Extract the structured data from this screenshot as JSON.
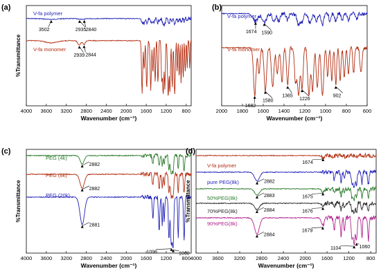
{
  "chart_data": [
    {
      "panel": "(a)",
      "type": "line",
      "xlabel": "Wavenumber (cm⁻¹)",
      "ylabel": "%Transmittance",
      "x_reversed": true,
      "xlim": [
        4000,
        700
      ],
      "xticks": [
        4000,
        3600,
        3200,
        2800,
        2400,
        2000,
        1600,
        1200,
        800
      ],
      "series": [
        {
          "name": "V-fa polymer",
          "color": "#1f1fb4",
          "base": 0.13,
          "depth": 0.16,
          "bands": [
            [
              3502,
              0.05,
              120
            ],
            [
              2935,
              0.05,
              40
            ],
            [
              2840,
              0.04,
              30
            ],
            [
              1650,
              0.3,
              30
            ],
            [
              1580,
              0.2,
              20
            ],
            [
              1500,
              0.25,
              18
            ],
            [
              1450,
              0.3,
              20
            ],
            [
              1365,
              0.25,
              15
            ],
            [
              1260,
              0.35,
              20
            ],
            [
              1226,
              0.25,
              15
            ],
            [
              1150,
              0.3,
              18
            ],
            [
              1090,
              0.25,
              15
            ],
            [
              1030,
              0.35,
              15
            ],
            [
              960,
              0.2,
              12
            ],
            [
              902,
              0.25,
              12
            ],
            [
              840,
              0.2,
              12
            ],
            [
              780,
              0.2,
              10
            ]
          ]
        },
        {
          "name": "V-fa monomer",
          "color": "#b22c10",
          "base": 0.35,
          "depth": 0.55,
          "bands": [
            [
              3500,
              0.04,
              120
            ],
            [
              2939,
              0.08,
              30
            ],
            [
              2844,
              0.07,
              25
            ],
            [
              1682,
              0.95,
              12
            ],
            [
              1640,
              0.5,
              10
            ],
            [
              1590,
              0.85,
              12
            ],
            [
              1510,
              0.9,
              12
            ],
            [
              1465,
              0.6,
              10
            ],
            [
              1420,
              0.75,
              10
            ],
            [
              1365,
              0.8,
              10
            ],
            [
              1290,
              0.7,
              10
            ],
            [
              1260,
              1.0,
              12
            ],
            [
              1226,
              0.85,
              10
            ],
            [
              1160,
              1.0,
              14
            ],
            [
              1125,
              0.9,
              10
            ],
            [
              1080,
              0.85,
              10
            ],
            [
              1030,
              1.0,
              12
            ],
            [
              980,
              0.6,
              8
            ],
            [
              940,
              0.7,
              8
            ],
            [
              902,
              0.8,
              8
            ],
            [
              860,
              0.7,
              8
            ],
            [
              820,
              0.6,
              8
            ],
            [
              780,
              0.5,
              8
            ],
            [
              730,
              0.5,
              8
            ]
          ]
        }
      ],
      "annotations": [
        {
          "text": "3502",
          "x": 3502,
          "series": 0
        },
        {
          "text": "2935",
          "x": 2935,
          "series": 0
        },
        {
          "text": "2840",
          "x": 2840,
          "series": 0
        },
        {
          "text": "2939",
          "x": 2939,
          "series": 1
        },
        {
          "text": "2844",
          "x": 2844,
          "series": 1
        }
      ]
    },
    {
      "panel": "(b)",
      "type": "line",
      "xlabel": "Wavenumber (cm⁻¹)",
      "ylabel": "",
      "x_reversed": true,
      "xlim": [
        2000,
        600
      ],
      "xticks": [
        2000,
        1800,
        1600,
        1400,
        1200,
        1000,
        800,
        600
      ],
      "series": [
        {
          "name": "V-fa polymer",
          "color": "#1f1fb4",
          "base": 0.08,
          "depth": 0.22,
          "bands": [
            [
              1674,
              0.35,
              25
            ],
            [
              1590,
              0.4,
              20
            ],
            [
              1500,
              0.3,
              15
            ],
            [
              1450,
              0.35,
              15
            ],
            [
              1365,
              0.3,
              12
            ],
            [
              1260,
              0.5,
              15
            ],
            [
              1226,
              0.35,
              12
            ],
            [
              1150,
              0.45,
              15
            ],
            [
              1090,
              0.35,
              12
            ],
            [
              1030,
              0.5,
              12
            ],
            [
              960,
              0.3,
              10
            ],
            [
              902,
              0.35,
              10
            ],
            [
              840,
              0.3,
              10
            ],
            [
              780,
              0.3,
              10
            ],
            [
              700,
              0.25,
              10
            ]
          ]
        },
        {
          "name": "V-fa monomer",
          "color": "#b22c10",
          "base": 0.42,
          "depth": 0.5,
          "bands": [
            [
              1682,
              0.95,
              12
            ],
            [
              1640,
              0.5,
              10
            ],
            [
              1580,
              0.85,
              12
            ],
            [
              1510,
              0.8,
              12
            ],
            [
              1465,
              0.55,
              10
            ],
            [
              1420,
              0.7,
              10
            ],
            [
              1365,
              0.75,
              10
            ],
            [
              1290,
              0.65,
              10
            ],
            [
              1260,
              0.95,
              12
            ],
            [
              1226,
              0.8,
              10
            ],
            [
              1160,
              0.95,
              12
            ],
            [
              1125,
              0.85,
              10
            ],
            [
              1080,
              0.8,
              10
            ],
            [
              1030,
              0.95,
              12
            ],
            [
              980,
              0.6,
              8
            ],
            [
              940,
              0.65,
              8
            ],
            [
              902,
              0.75,
              8
            ],
            [
              860,
              0.65,
              8
            ],
            [
              820,
              0.6,
              8
            ],
            [
              780,
              0.55,
              8
            ],
            [
              730,
              0.5,
              8
            ],
            [
              660,
              0.5,
              10
            ]
          ]
        }
      ],
      "annotations": [
        {
          "text": "1674",
          "x": 1674,
          "series": 0
        },
        {
          "text": "1590",
          "x": 1590,
          "series": 0
        },
        {
          "text": "1682",
          "x": 1682,
          "series": 1
        },
        {
          "text": "1580",
          "x": 1580,
          "series": 1
        },
        {
          "text": "1365",
          "x": 1365,
          "series": 1
        },
        {
          "text": "1226",
          "x": 1226,
          "series": 1
        },
        {
          "text": "902",
          "x": 902,
          "series": 1
        }
      ]
    },
    {
      "panel": "(c)",
      "type": "line",
      "xlabel": "Wavenumber (cm⁻¹)",
      "ylabel": "%Transmittance",
      "x_reversed": true,
      "xlim": [
        4000,
        700
      ],
      "xticks": [
        4000,
        3600,
        3200,
        2800,
        2400,
        2000,
        1600,
        1200,
        800
      ],
      "series": [
        {
          "name": "PEG (4k)",
          "color": "#2a7a2a",
          "base": 0.06,
          "depth": 0.18,
          "bands": [
            [
              2882,
              0.45,
              40
            ],
            [
              1467,
              0.5,
              12
            ],
            [
              1342,
              0.6,
              12
            ],
            [
              1280,
              0.5,
              10
            ],
            [
              1240,
              0.45,
              10
            ],
            [
              1145,
              0.7,
              12
            ],
            [
              1096,
              1.0,
              18
            ],
            [
              1060,
              0.8,
              12
            ],
            [
              960,
              0.7,
              10
            ],
            [
              842,
              0.8,
              12
            ]
          ]
        },
        {
          "name": "PEG (8k)",
          "color": "#b22c10",
          "base": 0.24,
          "depth": 0.22,
          "bands": [
            [
              2882,
              0.6,
              45
            ],
            [
              1467,
              0.5,
              12
            ],
            [
              1342,
              0.7,
              12
            ],
            [
              1280,
              0.55,
              10
            ],
            [
              1240,
              0.5,
              10
            ],
            [
              1145,
              0.8,
              12
            ],
            [
              1096,
              1.0,
              18
            ],
            [
              1060,
              0.85,
              12
            ],
            [
              960,
              0.8,
              10
            ],
            [
              842,
              0.85,
              12
            ]
          ]
        },
        {
          "name": "PEG (20k)",
          "color": "#2020b8",
          "base": 0.46,
          "depth": 0.48,
          "bands": [
            [
              2881,
              0.55,
              45
            ],
            [
              1467,
              0.45,
              12
            ],
            [
              1342,
              0.7,
              12
            ],
            [
              1280,
              0.55,
              10
            ],
            [
              1240,
              0.5,
              10
            ],
            [
              1145,
              0.85,
              12
            ],
            [
              1096,
              1.0,
              18
            ],
            [
              1060,
              0.9,
              12
            ],
            [
              960,
              0.8,
              10
            ],
            [
              842,
              0.85,
              12
            ]
          ]
        }
      ],
      "annotations": [
        {
          "text": "2882",
          "x": 2882,
          "series": 0
        },
        {
          "text": "2882",
          "x": 2882,
          "series": 1
        },
        {
          "text": "2881",
          "x": 2881,
          "series": 2
        },
        {
          "text": "1096",
          "x": 1096,
          "series": 2
        },
        {
          "text": "1060",
          "x": 1060,
          "series": 2
        }
      ]
    },
    {
      "panel": "(d)",
      "type": "line",
      "xlabel": "Wavenumber (cm⁻¹)",
      "ylabel": "%Transmittance",
      "x_reversed": true,
      "xlim": [
        4000,
        700
      ],
      "xticks": [
        4000,
        3600,
        3200,
        2800,
        2400,
        2000,
        1600,
        1200,
        800
      ],
      "series": [
        {
          "name": "V-fa polymer",
          "color": "#b22c10",
          "base": 0.06,
          "depth": 0.05,
          "bands": [
            [
              1674,
              0.4,
              30
            ],
            [
              1500,
              0.3,
              20
            ],
            [
              1260,
              0.3,
              20
            ],
            [
              1030,
              0.3,
              15
            ]
          ]
        },
        {
          "name": "pure PEG(8k)",
          "color": "#2020b8",
          "base": 0.22,
          "depth": 0.14,
          "bands": [
            [
              2882,
              0.6,
              45
            ],
            [
              1467,
              0.5,
              12
            ],
            [
              1342,
              0.7,
              12
            ],
            [
              1280,
              0.55,
              10
            ],
            [
              1145,
              0.8,
              12
            ],
            [
              1104,
              1.0,
              18
            ],
            [
              1060,
              0.85,
              12
            ],
            [
              960,
              0.8,
              10
            ],
            [
              842,
              0.85,
              12
            ]
          ]
        },
        {
          "name": "50%PEG(8k)",
          "color": "#2a7a2a",
          "base": 0.38,
          "depth": 0.1,
          "bands": [
            [
              2883,
              0.6,
              45
            ],
            [
              1675,
              0.3,
              25
            ],
            [
              1467,
              0.5,
              12
            ],
            [
              1342,
              0.7,
              12
            ],
            [
              1280,
              0.55,
              10
            ],
            [
              1145,
              0.8,
              12
            ],
            [
              1104,
              1.0,
              18
            ],
            [
              1060,
              0.85,
              12
            ],
            [
              960,
              0.8,
              10
            ],
            [
              842,
              0.85,
              12
            ]
          ]
        },
        {
          "name": "70%PEG(8k)",
          "color": "#222222",
          "base": 0.52,
          "depth": 0.1,
          "bands": [
            [
              2884,
              0.6,
              45
            ],
            [
              1676,
              0.3,
              25
            ],
            [
              1467,
              0.5,
              12
            ],
            [
              1342,
              0.7,
              12
            ],
            [
              1280,
              0.55,
              10
            ],
            [
              1145,
              0.8,
              12
            ],
            [
              1104,
              1.0,
              18
            ],
            [
              1060,
              0.85,
              12
            ],
            [
              960,
              0.8,
              10
            ],
            [
              842,
              0.85,
              12
            ]
          ]
        },
        {
          "name": "90%PEG(8k)",
          "color": "#b0208c",
          "base": 0.66,
          "depth": 0.26,
          "bands": [
            [
              2884,
              0.6,
              45
            ],
            [
              1679,
              0.3,
              25
            ],
            [
              1467,
              0.5,
              12
            ],
            [
              1342,
              0.7,
              12
            ],
            [
              1280,
              0.55,
              10
            ],
            [
              1145,
              0.8,
              12
            ],
            [
              1104,
              1.0,
              18
            ],
            [
              1060,
              0.85,
              12
            ],
            [
              960,
              0.8,
              10
            ],
            [
              842,
              0.85,
              12
            ]
          ]
        }
      ],
      "annotations": [
        {
          "text": "1674",
          "x": 1674,
          "series": 0
        },
        {
          "text": "2882",
          "x": 2882,
          "series": 1
        },
        {
          "text": "2883",
          "x": 2883,
          "series": 2
        },
        {
          "text": "1675",
          "x": 1675,
          "series": 2
        },
        {
          "text": "2884",
          "x": 2884,
          "series": 3
        },
        {
          "text": "1676",
          "x": 1676,
          "series": 3
        },
        {
          "text": "2884",
          "x": 2884,
          "series": 4
        },
        {
          "text": "1679",
          "x": 1679,
          "series": 4
        },
        {
          "text": "1104",
          "x": 1104,
          "series": 4
        },
        {
          "text": "1060",
          "x": 1060,
          "series": 4
        }
      ]
    }
  ]
}
